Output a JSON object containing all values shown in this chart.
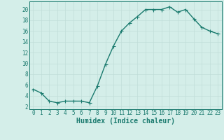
{
  "x": [
    0,
    1,
    2,
    3,
    4,
    5,
    6,
    7,
    8,
    9,
    10,
    11,
    12,
    13,
    14,
    15,
    16,
    17,
    18,
    19,
    20,
    21,
    22,
    23
  ],
  "y": [
    5.2,
    4.5,
    3.0,
    2.7,
    3.0,
    3.0,
    3.0,
    2.7,
    5.8,
    9.8,
    13.2,
    16.0,
    17.5,
    18.7,
    20.0,
    20.0,
    20.0,
    20.5,
    19.5,
    20.0,
    18.3,
    16.7,
    16.0,
    15.5
  ],
  "xlabel": "Humidex (Indice chaleur)",
  "xlim": [
    -0.5,
    23.5
  ],
  "ylim": [
    1.5,
    21.5
  ],
  "yticks": [
    2,
    4,
    6,
    8,
    10,
    12,
    14,
    16,
    18,
    20
  ],
  "xticks": [
    0,
    1,
    2,
    3,
    4,
    5,
    6,
    7,
    8,
    9,
    10,
    11,
    12,
    13,
    14,
    15,
    16,
    17,
    18,
    19,
    20,
    21,
    22,
    23
  ],
  "line_color": "#1a7a6e",
  "marker_color": "#1a7a6e",
  "bg_color": "#d4eee9",
  "grid_color": "#c0ddd8",
  "axis_color": "#1a7a6e",
  "tick_label_fontsize": 5.5,
  "xlabel_fontsize": 7.0,
  "marker_size": 1.8,
  "line_width": 1.0
}
